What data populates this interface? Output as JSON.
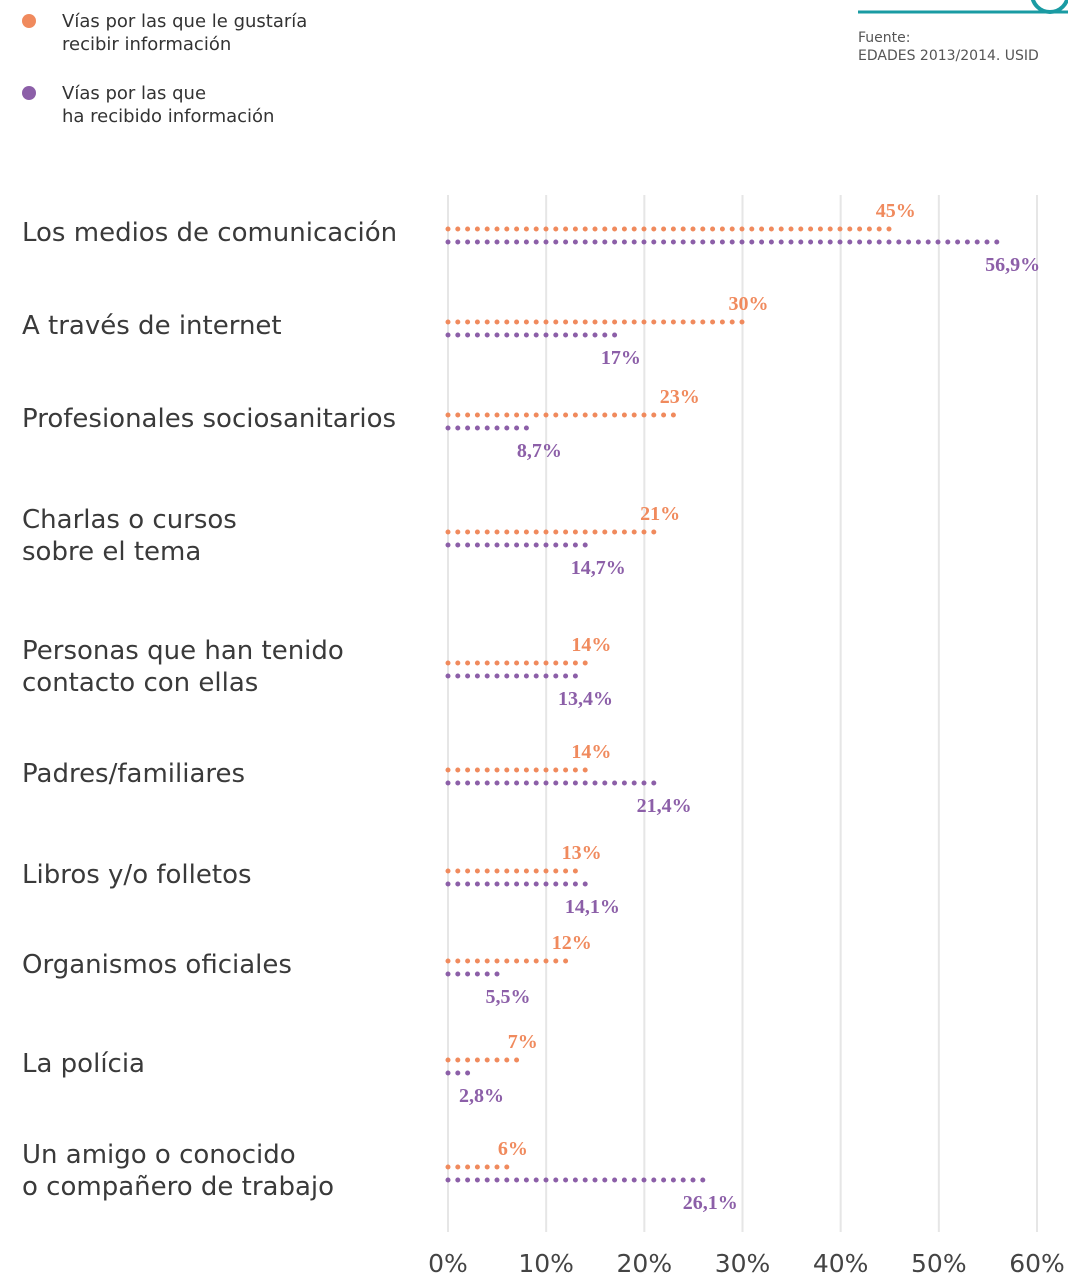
{
  "chart_data": {
    "type": "dotbar",
    "categories": [
      "Los medios de comunicación",
      "A través de internet",
      "Profesionales sociosanitarios",
      "Charlas o cursos\nsobre el tema",
      "Personas que han tenido\ncontacto con ellas",
      "Padres/familiares",
      "Libros y/o folletos",
      "Organismos oficiales",
      "La polícia",
      "Un amigo o conocido\no compañero de trabajo"
    ],
    "series": [
      {
        "name": "Vías por las que le gustaría\nrecibir información",
        "color": "#f08a5d",
        "values": [
          45,
          30,
          23,
          21,
          14,
          14,
          13,
          12,
          7,
          6
        ],
        "value_labels": [
          "45%",
          "30%",
          "23%",
          "21%",
          "14%",
          "14%",
          "13%",
          "12%",
          "7%",
          "6%"
        ]
      },
      {
        "name": "Vías por las que\nha recibido información",
        "color": "#8c5fa8",
        "values": [
          56.9,
          17,
          8.7,
          14.7,
          13.4,
          21.4,
          14.1,
          5.5,
          2.8,
          26.1
        ],
        "value_labels": [
          "56,9%",
          "17%",
          "8,7%",
          "14,7%",
          "13,4%",
          "21,4%",
          "14,1%",
          "5,5%",
          "2,8%",
          "26,1%"
        ]
      }
    ],
    "xlim": [
      0,
      60
    ],
    "xticks": [
      {
        "value": 0,
        "label": "0%"
      },
      {
        "value": 10,
        "label": "10%"
      },
      {
        "value": 20,
        "label": "20%"
      },
      {
        "value": 30,
        "label": "30%"
      },
      {
        "value": 40,
        "label": "40%"
      },
      {
        "value": 50,
        "label": "50%"
      },
      {
        "value": 60,
        "label": "60%"
      }
    ],
    "grid": true,
    "source_label": "Fuente:",
    "source": "EDADES 2013/2014. USID"
  }
}
